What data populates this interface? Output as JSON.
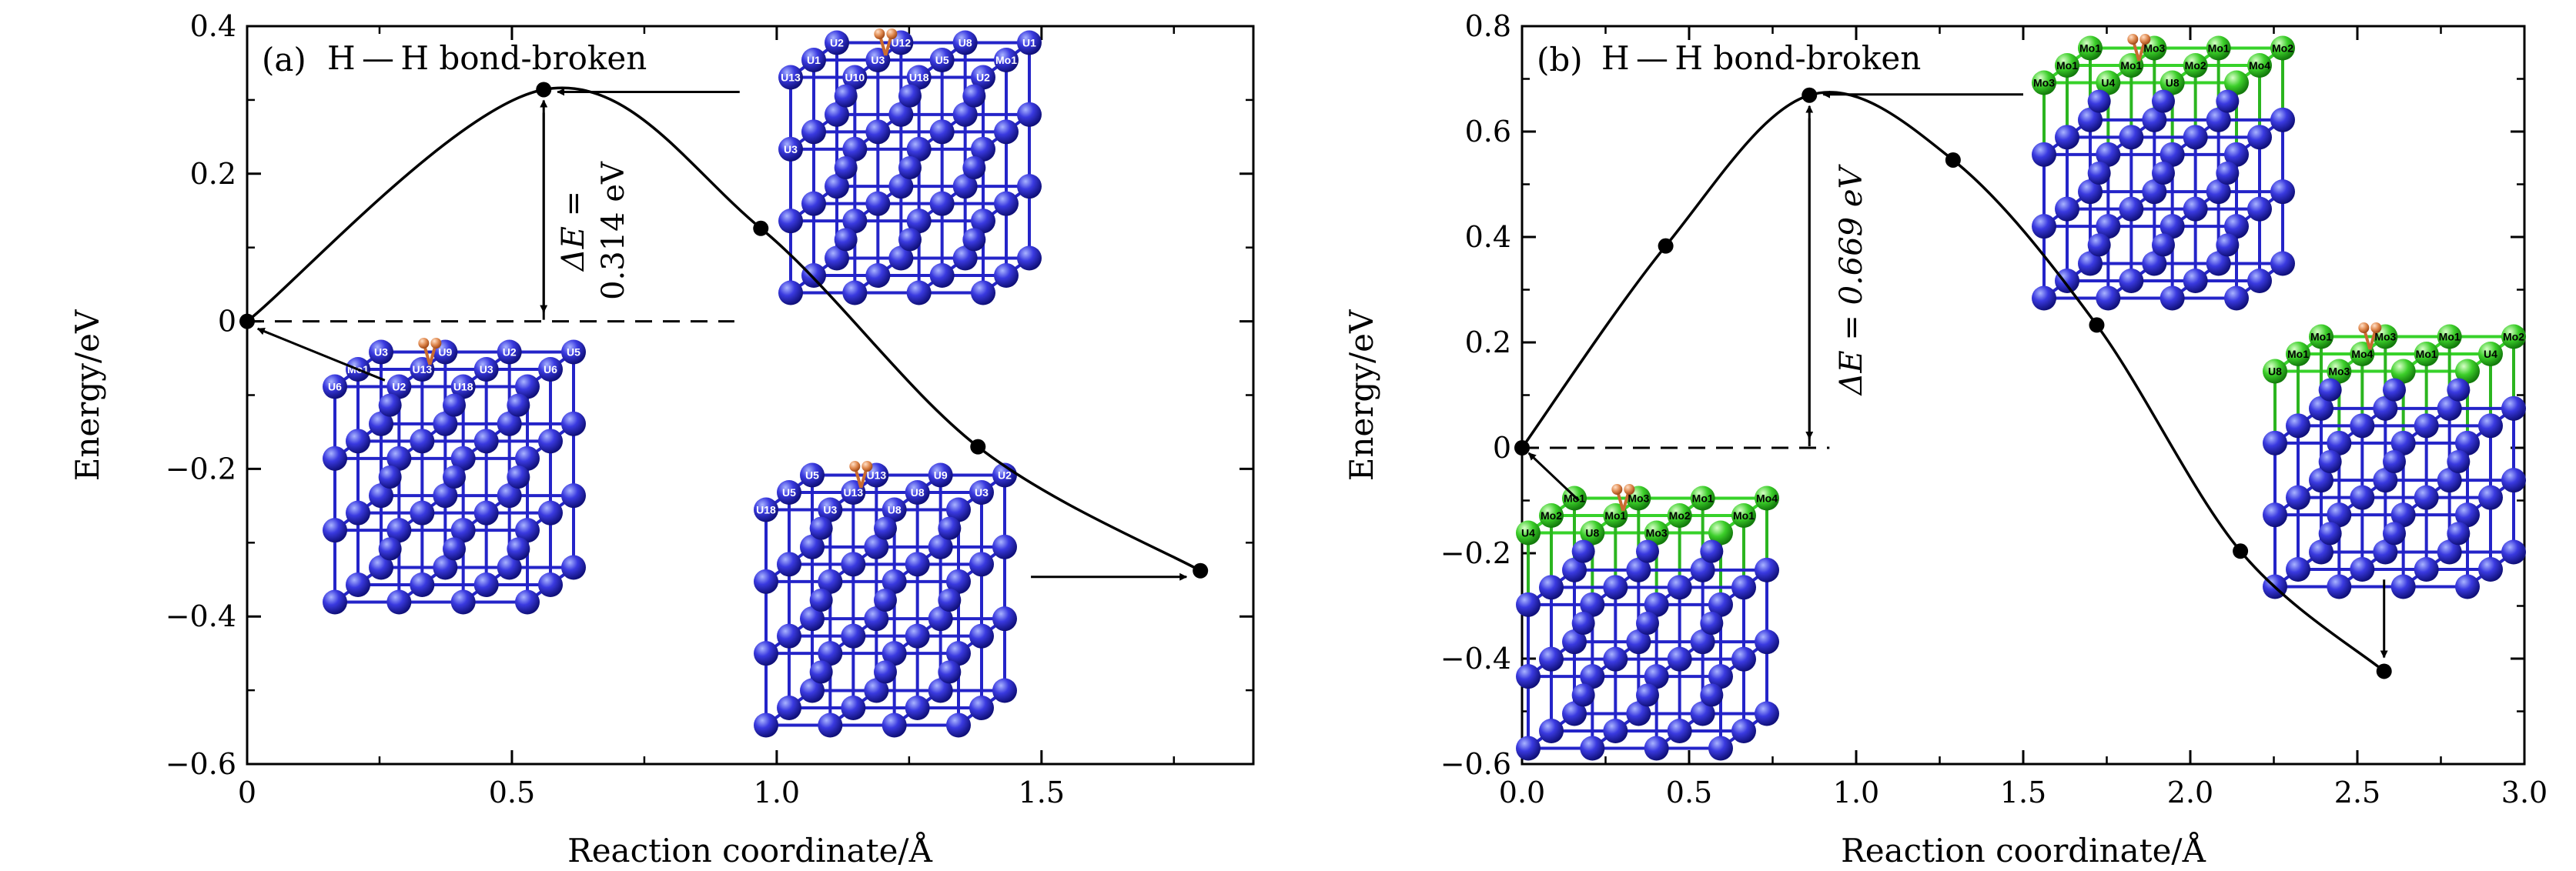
{
  "chart_data": [
    {
      "type": "line",
      "panel_label": "(a)",
      "annotation": "H — H bond-broken",
      "barrier_label_1": "ΔE =",
      "barrier_label_2": "0.314 eV",
      "xlabel": "Reaction coordinate/Å",
      "ylabel": "Energy/eV",
      "xlim": [
        0,
        1.9
      ],
      "ylim": [
        -0.6,
        0.4
      ],
      "xticks": [
        0,
        0.5,
        1.0,
        1.5
      ],
      "xtick_labels": [
        "0",
        "0.5",
        "1.0",
        "1.5"
      ],
      "yticks": [
        -0.6,
        -0.4,
        -0.2,
        0,
        0.2,
        0.4
      ],
      "ytick_labels": [
        "−0.6",
        "−0.4",
        "−0.2",
        "0",
        "0.2",
        "0.4"
      ],
      "x": [
        0,
        0.56,
        0.97,
        1.38,
        1.8
      ],
      "y": [
        0,
        0.314,
        0.126,
        -0.17,
        -0.338
      ],
      "barrier_x": 0.56,
      "barrier": 0.314,
      "structures": [
        {
          "atoms": [
            "U2",
            "U12",
            "U8",
            "U1",
            "U1",
            "U3",
            "U5",
            "Mo1",
            "U13",
            "U10",
            "U18",
            "U2",
            "U3"
          ]
        },
        {
          "atoms": [
            "U3",
            "U9",
            "U2",
            "U5",
            "Mo1",
            "U13",
            "U3",
            "U6",
            "U6",
            "U2",
            "U18"
          ]
        },
        {
          "atoms": [
            "U5",
            "U13",
            "U9",
            "U2",
            "U5",
            "U13",
            "U8",
            "U3",
            "U18",
            "U3",
            "U8"
          ]
        }
      ]
    },
    {
      "type": "line",
      "panel_label": "(b)",
      "annotation": "H — H bond-broken",
      "barrier_label_1": "ΔE = 0.669 eV",
      "xlabel": "Reaction coordinate/Å",
      "ylabel": "Energy/eV",
      "xlim": [
        0,
        3.0
      ],
      "ylim": [
        -0.6,
        0.8
      ],
      "xticks": [
        0,
        0.5,
        1.0,
        1.5,
        2.0,
        2.5,
        3.0
      ],
      "xtick_labels": [
        "0.0",
        "0.5",
        "1.0",
        "1.5",
        "2.0",
        "2.5",
        "3.0"
      ],
      "yticks": [
        -0.6,
        -0.4,
        -0.2,
        0,
        0.2,
        0.4,
        0.6,
        0.8
      ],
      "ytick_labels": [
        "−0.6",
        "−0.4",
        "−0.2",
        "0",
        "0.2",
        "0.4",
        "0.6",
        "0.8"
      ],
      "x": [
        0,
        0.43,
        0.86,
        1.29,
        1.72,
        2.15,
        2.58
      ],
      "y": [
        0,
        0.383,
        0.669,
        0.546,
        0.233,
        -0.196,
        -0.424
      ],
      "barrier_x": 0.86,
      "barrier": 0.669,
      "structures": [
        {
          "atoms": [
            "Mo1",
            "Mo3",
            "Mo1",
            "Mo2",
            "Mo1",
            "Mo1",
            "Mo2",
            "Mo4",
            "Mo3",
            "U4",
            "U8"
          ]
        },
        {
          "atoms": [
            "Mo1",
            "Mo3",
            "Mo1",
            "Mo4",
            "Mo2",
            "Mo1",
            "Mo2",
            "Mo1",
            "U4",
            "U8",
            "Mo3"
          ]
        },
        {
          "atoms": [
            "Mo1",
            "Mo3",
            "Mo1",
            "Mo2",
            "Mo1",
            "Mo4",
            "Mo1",
            "U4",
            "U8",
            "Mo3"
          ]
        }
      ]
    }
  ]
}
